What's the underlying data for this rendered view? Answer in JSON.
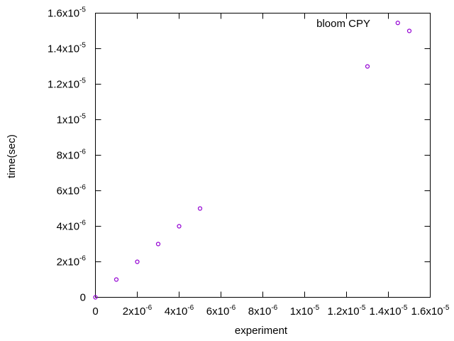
{
  "chart_data": {
    "type": "scatter",
    "title": "",
    "xlabel": "experiment",
    "ylabel": "time(sec)",
    "xlim": [
      0,
      1.6e-05
    ],
    "ylim": [
      0,
      1.6e-05
    ],
    "grid": false,
    "legend_position": "top-right",
    "x_ticks": [
      {
        "value": 0,
        "mant": "0",
        "exp": ""
      },
      {
        "value": 2e-06,
        "mant": "2x10",
        "exp": "-6"
      },
      {
        "value": 4e-06,
        "mant": "4x10",
        "exp": "-6"
      },
      {
        "value": 6e-06,
        "mant": "6x10",
        "exp": "-6"
      },
      {
        "value": 8e-06,
        "mant": "8x10",
        "exp": "-6"
      },
      {
        "value": 1e-05,
        "mant": "1x10",
        "exp": "-5"
      },
      {
        "value": 1.2e-05,
        "mant": "1.2x10",
        "exp": "-5"
      },
      {
        "value": 1.4e-05,
        "mant": "1.4x10",
        "exp": "-5"
      },
      {
        "value": 1.6e-05,
        "mant": "1.6x10",
        "exp": "-5"
      }
    ],
    "y_ticks": [
      {
        "value": 0,
        "mant": "0",
        "exp": ""
      },
      {
        "value": 2e-06,
        "mant": "2x10",
        "exp": "-6"
      },
      {
        "value": 4e-06,
        "mant": "4x10",
        "exp": "-6"
      },
      {
        "value": 6e-06,
        "mant": "6x10",
        "exp": "-6"
      },
      {
        "value": 8e-06,
        "mant": "8x10",
        "exp": "-6"
      },
      {
        "value": 1e-05,
        "mant": "1x10",
        "exp": "-5"
      },
      {
        "value": 1.2e-05,
        "mant": "1.2x10",
        "exp": "-5"
      },
      {
        "value": 1.4e-05,
        "mant": "1.4x10",
        "exp": "-5"
      },
      {
        "value": 1.6e-05,
        "mant": "1.6x10",
        "exp": "-5"
      }
    ],
    "series": [
      {
        "name": "bloom CPY",
        "color": "#9400d3",
        "marker": "circle-open",
        "points": [
          {
            "x": 0,
            "y": 0
          },
          {
            "x": 1e-06,
            "y": 1e-06
          },
          {
            "x": 2e-06,
            "y": 2e-06
          },
          {
            "x": 3e-06,
            "y": 3e-06
          },
          {
            "x": 4e-06,
            "y": 4e-06
          },
          {
            "x": 5e-06,
            "y": 5e-06
          },
          {
            "x": 1.3e-05,
            "y": 1.3e-05
          },
          {
            "x": 1.445e-05,
            "y": 1.545e-05
          },
          {
            "x": 1.5e-05,
            "y": 1.5e-05
          }
        ]
      }
    ]
  }
}
